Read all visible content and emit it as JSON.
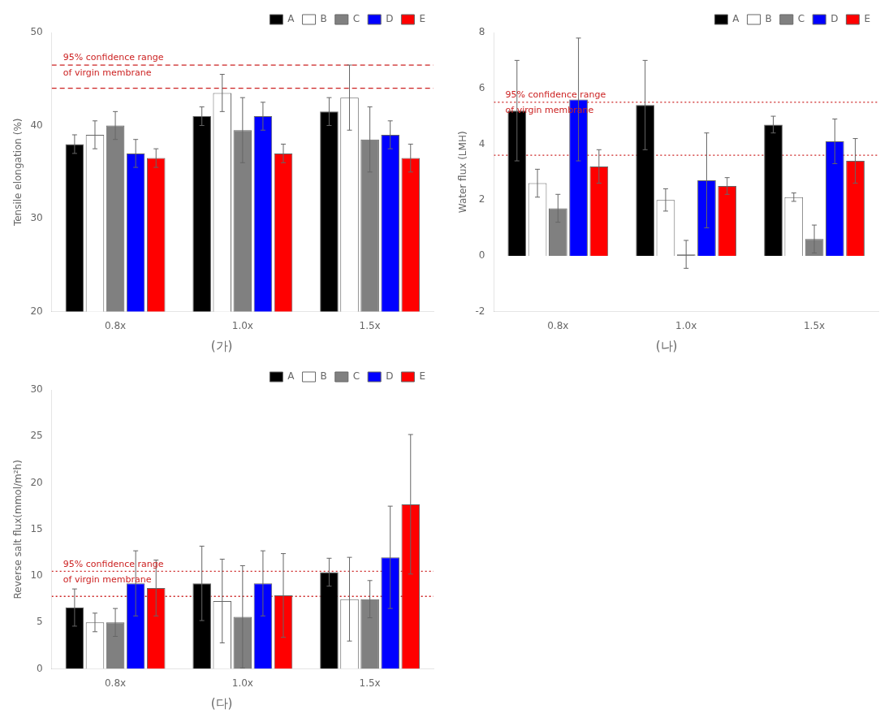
{
  "chart_data": [
    {
      "type": "bar",
      "title": "(가)",
      "categories": [
        "0.8x",
        "1.0x",
        "1.5x"
      ],
      "ylabel": "Tensile elongation (%)",
      "ylim": [
        20,
        50
      ],
      "yticks": [
        20,
        30,
        40,
        50
      ],
      "grid": false,
      "legend": "upper right",
      "series": [
        {
          "name": "A",
          "color": "#000000",
          "values": [
            38.0,
            41.0,
            41.5
          ],
          "errors": [
            1.0,
            1.0,
            1.5
          ]
        },
        {
          "name": "B",
          "color": "#ffffff",
          "values": [
            39.0,
            43.5,
            43.0
          ],
          "errors": [
            1.5,
            2.0,
            3.5
          ]
        },
        {
          "name": "C",
          "color": "#808080",
          "values": [
            40.0,
            39.5,
            38.5
          ],
          "errors": [
            1.5,
            3.5,
            3.5
          ]
        },
        {
          "name": "D",
          "color": "#0000ff",
          "values": [
            37.0,
            41.0,
            39.0
          ],
          "errors": [
            1.5,
            1.5,
            1.5
          ]
        },
        {
          "name": "E",
          "color": "#ff0000",
          "values": [
            36.5,
            37.0,
            36.5
          ],
          "errors": [
            1.0,
            1.0,
            1.5
          ]
        }
      ],
      "reference_lines": {
        "values": [
          44.0,
          46.5
        ],
        "color": "#cc2222",
        "line_style": "dashed",
        "labels": [
          "95% confidence range",
          "of virgin membrane"
        ]
      }
    },
    {
      "type": "bar",
      "title": "(나)",
      "categories": [
        "0.8x",
        "1.0x",
        "1.5x"
      ],
      "ylabel": "Water flux (LMH)",
      "ylim": [
        -2,
        8
      ],
      "yticks": [
        -2,
        0,
        2,
        4,
        6,
        8
      ],
      "grid": false,
      "legend": "upper right",
      "series": [
        {
          "name": "A",
          "color": "#000000",
          "values": [
            5.2,
            5.4,
            4.7
          ],
          "errors": [
            1.8,
            1.6,
            0.3
          ]
        },
        {
          "name": "B",
          "color": "#ffffff",
          "values": [
            2.6,
            2.0,
            2.1
          ],
          "errors": [
            0.5,
            0.4,
            0.15
          ]
        },
        {
          "name": "C",
          "color": "#808080",
          "values": [
            1.7,
            0.05,
            0.6
          ],
          "errors": [
            0.5,
            0.5,
            0.5
          ]
        },
        {
          "name": "D",
          "color": "#0000ff",
          "values": [
            5.6,
            2.7,
            4.1
          ],
          "errors": [
            2.2,
            1.7,
            0.8
          ]
        },
        {
          "name": "E",
          "color": "#ff0000",
          "values": [
            3.2,
            2.5,
            3.4
          ],
          "errors": [
            0.6,
            0.3,
            0.8
          ]
        }
      ],
      "reference_lines": {
        "values": [
          3.6,
          5.5
        ],
        "color": "#cc2222",
        "line_style": "dotted",
        "labels": [
          "95% confidence range",
          "of virgin membrane"
        ]
      }
    },
    {
      "type": "bar",
      "title": "(다)",
      "categories": [
        "0.8x",
        "1.0x",
        "1.5x"
      ],
      "ylabel": "Reverse salt flux(mmol/m²h)",
      "ylim": [
        0,
        30
      ],
      "yticks": [
        0,
        5,
        10,
        15,
        20,
        25,
        30
      ],
      "grid": false,
      "legend": "upper right",
      "series": [
        {
          "name": "A",
          "color": "#000000",
          "values": [
            6.6,
            9.2,
            10.4
          ],
          "errors": [
            2.0,
            4.0,
            1.5
          ]
        },
        {
          "name": "B",
          "color": "#ffffff",
          "values": [
            5.0,
            7.3,
            7.5
          ],
          "errors": [
            1.0,
            4.5,
            4.5
          ]
        },
        {
          "name": "C",
          "color": "#808080",
          "values": [
            5.0,
            5.6,
            7.5
          ],
          "errors": [
            1.5,
            5.5,
            2.0
          ]
        },
        {
          "name": "D",
          "color": "#0000ff",
          "values": [
            9.2,
            9.2,
            12.0
          ],
          "errors": [
            3.5,
            3.5,
            5.5
          ]
        },
        {
          "name": "E",
          "color": "#ff0000",
          "values": [
            8.7,
            7.9,
            17.7
          ],
          "errors": [
            3.0,
            4.5,
            7.5
          ]
        }
      ],
      "reference_lines": {
        "values": [
          7.8,
          10.5
        ],
        "color": "#cc2222",
        "line_style": "dotted",
        "labels": [
          "95% confidence range",
          "of virgin membrane"
        ]
      }
    }
  ]
}
